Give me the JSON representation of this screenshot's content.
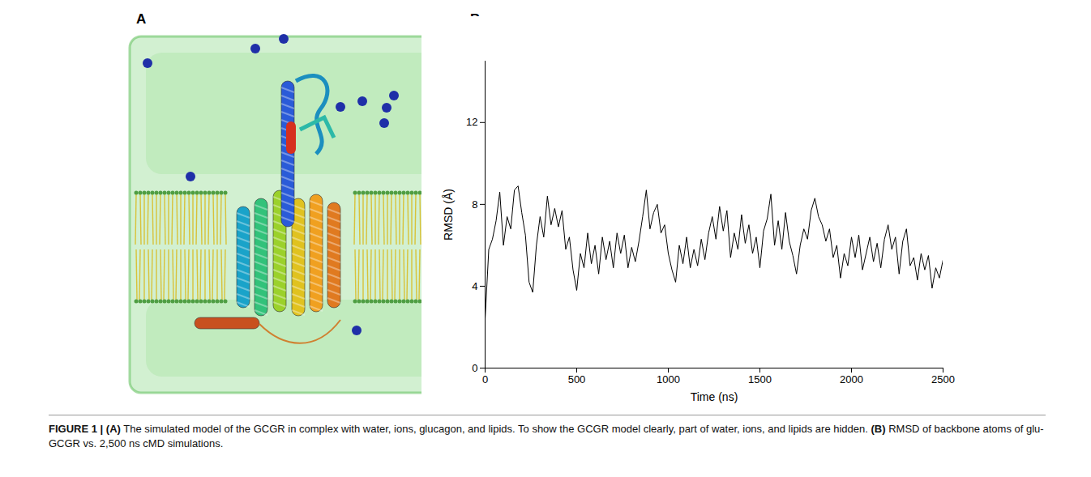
{
  "panel_a": {
    "label": "A"
  },
  "chart_data": {
    "label": "B",
    "type": "line",
    "xlabel": "Time (ns)",
    "ylabel": "RMSD (Å)",
    "xlim": [
      0,
      2500
    ],
    "xticks": [
      0,
      500,
      1000,
      1500,
      2000,
      2500
    ],
    "ylim": [
      0,
      15
    ],
    "yticks": [
      0,
      4,
      8,
      12
    ],
    "grid": false,
    "color": "#000000",
    "x": [
      0,
      20,
      40,
      60,
      80,
      100,
      120,
      140,
      160,
      180,
      200,
      220,
      240,
      260,
      280,
      300,
      320,
      340,
      360,
      380,
      400,
      420,
      440,
      460,
      480,
      500,
      520,
      540,
      560,
      580,
      600,
      620,
      640,
      660,
      680,
      700,
      720,
      740,
      760,
      780,
      800,
      820,
      840,
      860,
      880,
      900,
      920,
      940,
      960,
      980,
      1000,
      1020,
      1040,
      1060,
      1080,
      1100,
      1120,
      1140,
      1160,
      1180,
      1200,
      1220,
      1240,
      1260,
      1280,
      1300,
      1320,
      1340,
      1360,
      1380,
      1400,
      1420,
      1440,
      1460,
      1480,
      1500,
      1520,
      1540,
      1560,
      1580,
      1600,
      1620,
      1640,
      1660,
      1680,
      1700,
      1720,
      1740,
      1760,
      1780,
      1800,
      1820,
      1840,
      1860,
      1880,
      1900,
      1920,
      1940,
      1960,
      1980,
      2000,
      2020,
      2040,
      2060,
      2080,
      2100,
      2120,
      2140,
      2160,
      2180,
      2200,
      2220,
      2240,
      2260,
      2280,
      2300,
      2320,
      2340,
      2360,
      2380,
      2400,
      2420,
      2440,
      2460,
      2480,
      2500
    ],
    "values": [
      2.4,
      5.8,
      6.3,
      7.2,
      8.6,
      6.0,
      7.4,
      6.8,
      8.7,
      8.9,
      7.6,
      6.5,
      4.2,
      3.7,
      6.0,
      7.4,
      6.4,
      8.4,
      7.0,
      7.8,
      6.9,
      7.7,
      5.8,
      6.4,
      4.8,
      3.8,
      5.6,
      4.9,
      6.6,
      5.1,
      6.0,
      4.6,
      6.4,
      5.3,
      6.2,
      4.9,
      6.6,
      5.6,
      6.5,
      4.9,
      5.9,
      5.2,
      6.2,
      7.4,
      8.7,
      6.8,
      7.6,
      8.0,
      6.6,
      7.0,
      5.6,
      4.8,
      4.2,
      6.0,
      5.1,
      6.4,
      4.9,
      5.8,
      5.0,
      6.3,
      5.3,
      6.6,
      7.4,
      6.3,
      7.9,
      6.7,
      7.7,
      5.4,
      6.6,
      5.8,
      7.5,
      6.1,
      7.0,
      5.6,
      6.4,
      4.9,
      6.7,
      7.3,
      8.5,
      6.0,
      7.2,
      5.8,
      7.6,
      6.2,
      5.5,
      4.6,
      6.0,
      6.8,
      6.3,
      7.7,
      8.3,
      7.4,
      7.0,
      6.2,
      6.8,
      5.4,
      6.0,
      4.4,
      5.6,
      5.0,
      6.4,
      5.4,
      6.5,
      4.8,
      5.6,
      6.4,
      5.2,
      6.1,
      4.9,
      6.3,
      7.0,
      5.8,
      6.4,
      4.6,
      6.2,
      6.8,
      5.0,
      5.4,
      4.3,
      5.6,
      4.8,
      5.5,
      3.9,
      4.9,
      4.4,
      5.3
    ]
  },
  "caption": {
    "label": "FIGURE 1 |",
    "parts": [
      {
        "tag": "(A)",
        "text": "The simulated model of the GCGR in complex with water, ions, glucagon, and lipids. To show the GCGR model clearly, part of water, ions, and lipids are hidden."
      },
      {
        "tag": "(B)",
        "text": "RMSD of backbone atoms of glu-GCGR vs. 2,500 ns cMD simulations."
      }
    ]
  }
}
